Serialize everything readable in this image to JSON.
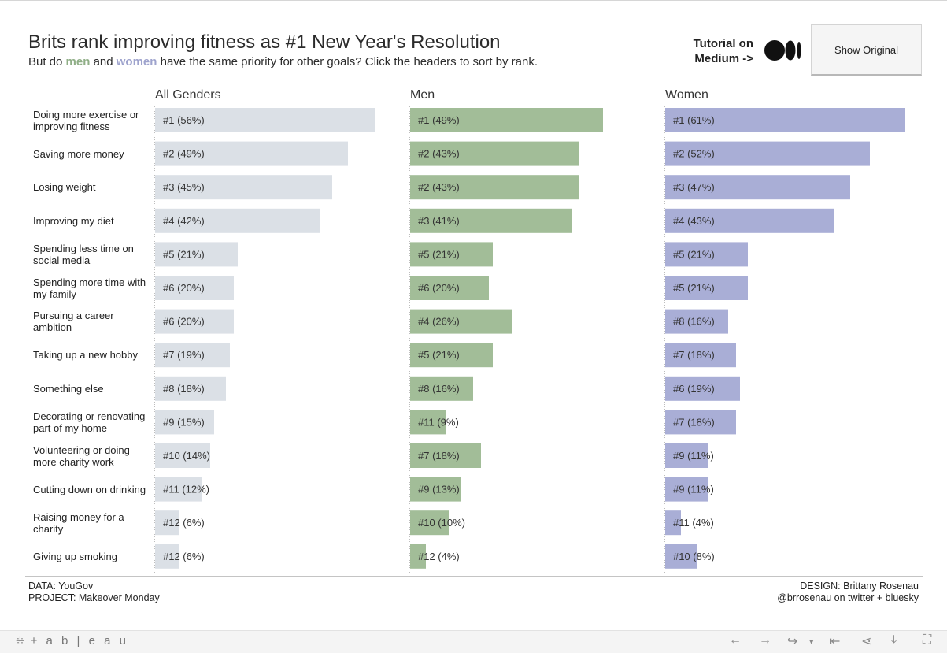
{
  "header": {
    "title": "Brits rank improving fitness as #1 New Year's Resolution",
    "subtitle_part1": "But do",
    "subtitle_men": "men",
    "subtitle_part2": "and",
    "subtitle_women": "women",
    "subtitle_part3": "have the same priority for other goals? Click the headers to sort by rank.",
    "tutorial_line1": "Tutorial on",
    "tutorial_line2": "Medium ->",
    "show_original_label": "Show Original"
  },
  "colors": {
    "all": "#dbe0e6",
    "men": "#a2bd98",
    "women": "#a9aed6",
    "men_text": "#8fae86",
    "women_text": "#9ea3cd"
  },
  "chart_data": {
    "type": "bar",
    "title": "Brits rank improving fitness as #1 New Year's Resolution",
    "categories": [
      "Doing more exercise or improving fitness",
      "Saving more money",
      "Losing weight",
      "Improving my diet",
      "Spending less time on social media",
      "Spending more time with my family",
      "Pursuing a career ambition",
      "Taking up a new hobby",
      "Something else",
      "Decorating or renovating part of my home",
      "Volunteering or doing more charity work",
      "Cutting down on drinking",
      "Raising money for a charity",
      "Giving up smoking"
    ],
    "series": [
      {
        "name": "All Genders",
        "values": [
          56,
          49,
          45,
          42,
          21,
          20,
          20,
          19,
          18,
          15,
          14,
          12,
          6,
          6
        ],
        "labels": [
          "#1 (56%)",
          "#2 (49%)",
          "#3 (45%)",
          "#4 (42%)",
          "#5 (21%)",
          "#6 (20%)",
          "#6 (20%)",
          "#7 (19%)",
          "#8 (18%)",
          "#9 (15%)",
          "#10 (14%)",
          "#11 (12%)",
          "#12 (6%)",
          "#12 (6%)"
        ]
      },
      {
        "name": "Men",
        "values": [
          49,
          43,
          43,
          41,
          21,
          20,
          26,
          21,
          16,
          9,
          18,
          13,
          10,
          4
        ],
        "labels": [
          "#1 (49%)",
          "#2 (43%)",
          "#2 (43%)",
          "#3 (41%)",
          "#5 (21%)",
          "#6 (20%)",
          "#4 (26%)",
          "#5 (21%)",
          "#8 (16%)",
          "#11 (9%)",
          "#7 (18%)",
          "#9 (13%)",
          "#10 (10%)",
          "#12 (4%)"
        ]
      },
      {
        "name": "Women",
        "values": [
          61,
          52,
          47,
          43,
          21,
          21,
          16,
          18,
          19,
          18,
          11,
          11,
          4,
          8
        ],
        "labels": [
          "#1 (61%)",
          "#2 (52%)",
          "#3 (47%)",
          "#4 (43%)",
          "#5 (21%)",
          "#5 (21%)",
          "#8 (16%)",
          "#7 (18%)",
          "#6 (19%)",
          "#7 (18%)",
          "#9 (11%)",
          "#9 (11%)",
          "#11 (4%)",
          "#10 (8%)"
        ]
      }
    ],
    "xlim": [
      0,
      61
    ],
    "unit": "%"
  },
  "footer": {
    "data_source": "DATA: YouGov",
    "project": "PROJECT: Makeover Monday",
    "design": "DESIGN: Brittany Rosenau",
    "social": "@brrosenau on twitter + bluesky"
  },
  "toolbar": {
    "logo_text": "+ a b | e a u",
    "icons": [
      "undo-icon",
      "redo-icon",
      "revert-icon",
      "reset-icon",
      "share-icon",
      "download-icon",
      "fullscreen-icon"
    ]
  }
}
